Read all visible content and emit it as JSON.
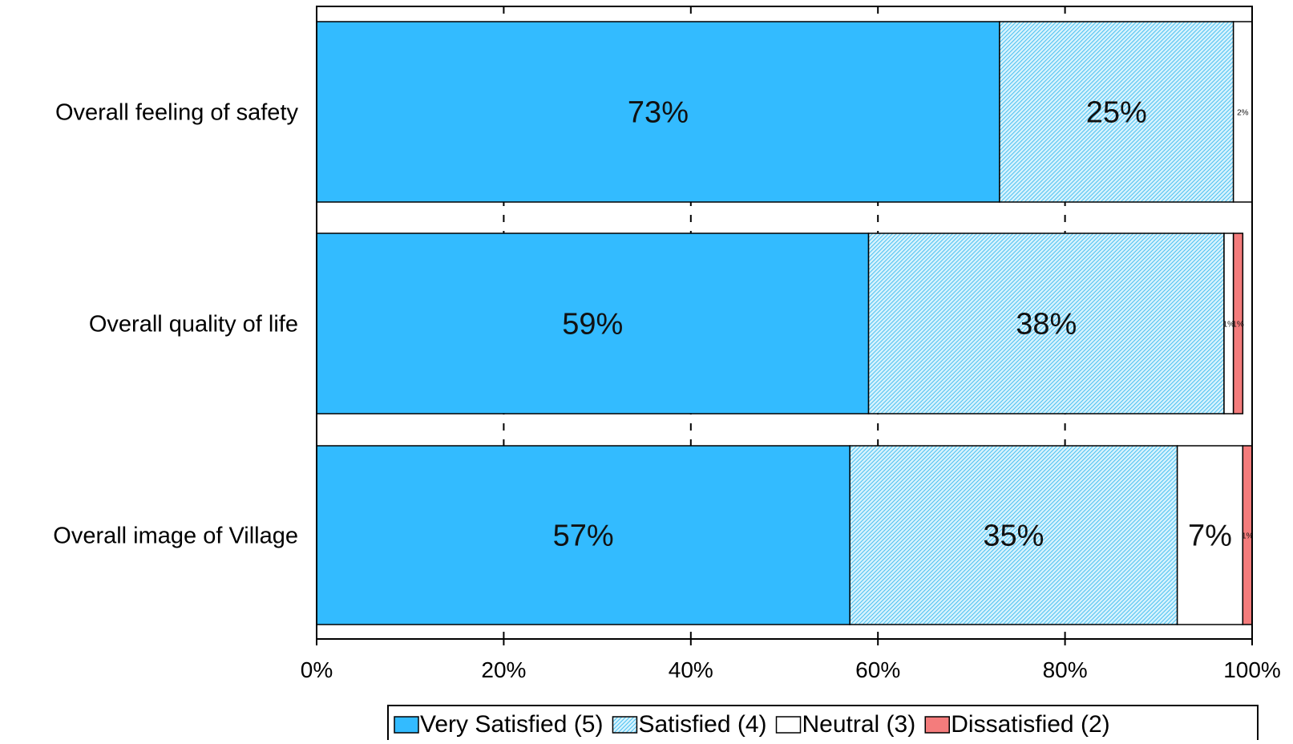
{
  "chart_data": {
    "type": "bar",
    "orientation": "horizontal",
    "stacked": "percent",
    "title": "",
    "xlabel": "",
    "ylabel": "",
    "xlim": [
      0,
      100
    ],
    "x_tick_labels": [
      "0%",
      "20%",
      "40%",
      "60%",
      "80%",
      "100%"
    ],
    "categories": [
      "Overall feeling of safety",
      "Overall quality of life",
      "Overall image of Village"
    ],
    "series": [
      {
        "name": "Very Satisfied (5)",
        "color": "#33bbff",
        "pattern": "solid",
        "values": [
          73,
          59,
          57
        ],
        "labels": [
          "73%",
          "59%",
          "57%"
        ]
      },
      {
        "name": "Satisfied (4)",
        "color": "#cdeffc",
        "pattern": "diagonal-hatch",
        "values": [
          25,
          38,
          35
        ],
        "labels": [
          "25%",
          "38%",
          "35%"
        ]
      },
      {
        "name": "Neutral (3)",
        "color": "#ffffff",
        "pattern": "solid",
        "values": [
          2,
          1,
          7
        ],
        "labels": [
          "2%",
          "1%",
          "7%"
        ]
      },
      {
        "name": "Dissatisfied (2)",
        "color": "#f47c7c",
        "pattern": "solid",
        "values": [
          0,
          1,
          1
        ],
        "labels": [
          "",
          "1%",
          "1%"
        ]
      }
    ],
    "grid": "vertical dashed",
    "legend_position": "bottom"
  }
}
